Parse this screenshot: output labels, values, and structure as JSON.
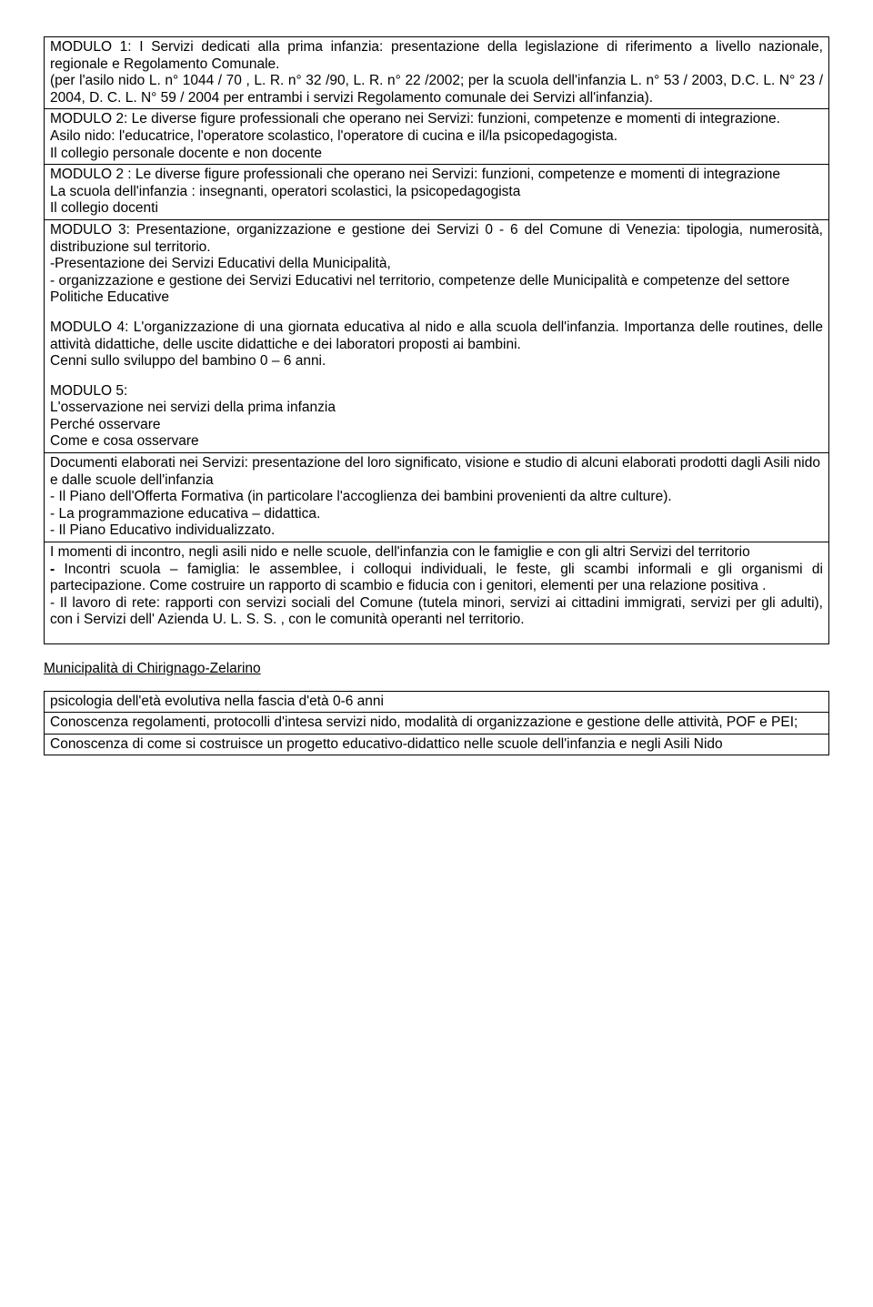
{
  "box1": {
    "mod1": {
      "title_part1": "MODULO 1: I Servizi dedicati alla prima infanzia: presentazione della legislazione di riferimento a livello nazionale, regionale e Regolamento Comunale.",
      "line2": "(per l'asilo nido L. n° 1044 / 70 , L. R. n° 32 /90, L. R. n° 22 /2002; per la scuola dell'infanzia L. n° 53 / 2003, D.C. L. N° 23 / 2004, D. C. L. N° 59 / 2004 per entrambi i servizi Regolamento comunale dei Servizi all'infanzia)."
    },
    "mod2a": {
      "p1": "MODULO 2: Le diverse figure professionali che operano nei Servizi: funzioni, competenze e momenti di integrazione.",
      "p2": "Asilo nido: l'educatrice, l'operatore scolastico, l'operatore di cucina e il/la psicopedagogista.",
      "p3": "Il collegio personale docente e non docente"
    },
    "mod2b": {
      "p1": "MODULO 2 : Le diverse figure professionali che operano nei Servizi: funzioni, competenze e momenti di integrazione",
      "p2": "La scuola dell'infanzia : insegnanti, operatori scolastici, la psicopedagogista",
      "p3": "Il collegio docenti"
    },
    "mod3": {
      "p1": "MODULO 3: Presentazione, organizzazione e gestione dei Servizi 0 - 6 del Comune di Venezia: tipologia, numerosità, distribuzione sul territorio.",
      "p2": "-Presentazione dei Servizi Educativi della Municipalità,",
      "p3": "- organizzazione e gestione dei Servizi Educativi nel territorio, competenze delle Municipalità e competenze del settore Politiche Educative"
    },
    "mod4": {
      "p1": "MODULO 4: L'organizzazione di una giornata educativa al nido e alla scuola dell'infanzia. Importanza delle routines, delle attività didattiche, delle uscite didattiche e dei laboratori proposti ai bambini.",
      "p2": "Cenni sullo sviluppo del bambino 0 – 6 anni."
    },
    "mod5": {
      "p1": "MODULO 5:",
      "p2": "L'osservazione nei servizi della prima infanzia",
      "p3": "Perché osservare",
      "p4": "Come e cosa osservare"
    },
    "docs": {
      "p1": "Documenti elaborati nei Servizi: presentazione del loro significato, visione e studio di alcuni elaborati prodotti dagli Asili nido e dalle scuole dell'infanzia",
      "p2": "- Il Piano dell'Offerta Formativa (in particolare l'accoglienza dei bambini provenienti da altre culture).",
      "p3": "- La programmazione educativa – didattica.",
      "p4": "- Il Piano Educativo individualizzato."
    },
    "incontro": {
      "p1": "I momenti di incontro, negli asili nido e nelle scuole, dell'infanzia con le famiglie e con gli altri Servizi del territorio",
      "p2a": "- ",
      "p2b": "Incontri scuola – famiglia: le assemblee, i colloqui individuali, le feste, gli scambi informali e gli organismi di partecipazione. Come costruire un rapporto di scambio e fiducia con i genitori, elementi per una relazione positiva .",
      "p3": "- Il lavoro di rete: rapporti con servizi sociali del Comune (tutela minori, servizi ai cittadini immigrati, servizi per gli adulti), con i Servizi dell' Azienda U. L. S. S. , con le comunità operanti nel territorio."
    }
  },
  "heading2": "Municipalità di Chirignago-Zelarino",
  "box2": {
    "r1": "psicologia dell'età evolutiva nella fascia d'età 0-6 anni",
    "r2": "Conoscenza regolamenti, protocolli d'intesa servizi nido, modalità di organizzazione e gestione delle attività, POF e PEI;",
    "r3": "Conoscenza di come si costruisce un progetto educativo-didattico nelle scuole dell'infanzia e negli Asili Nido"
  }
}
